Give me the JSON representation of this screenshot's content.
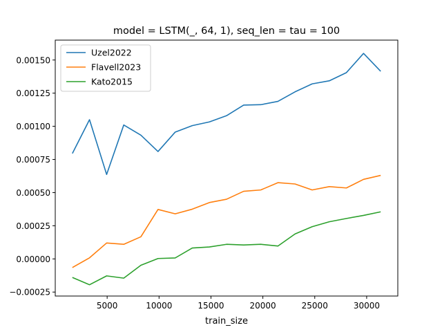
{
  "chart_data": {
    "type": "line",
    "title": "model = LSTM(_, 64, 1), seq_len = tau = 100",
    "xlabel": "train_size",
    "ylabel": "",
    "xlim": [
      0,
      33000
    ],
    "ylim": [
      -0.00028,
      0.00165
    ],
    "xticks": [
      5000,
      10000,
      15000,
      20000,
      25000,
      30000
    ],
    "xtick_labels": [
      "5000",
      "10000",
      "15000",
      "20000",
      "25000",
      "30000"
    ],
    "yticks": [
      -0.00025,
      0,
      0.00025,
      0.0005,
      0.00075,
      0.001,
      0.00125,
      0.0015
    ],
    "ytick_labels": [
      "−0.00025",
      "0.00000",
      "0.00025",
      "0.00050",
      "0.00075",
      "0.00100",
      "0.00125",
      "0.00150"
    ],
    "grid": false,
    "legend_position": "top-left",
    "x": [
      1650,
      3300,
      4950,
      6600,
      8250,
      9900,
      11550,
      13200,
      14850,
      16500,
      18150,
      19800,
      21450,
      23100,
      24750,
      26400,
      28050,
      29700,
      31350
    ],
    "series": [
      {
        "name": "Uzel2022",
        "color": "#1f77b4",
        "values": [
          0.000795,
          0.00105,
          0.000637,
          0.00101,
          0.000933,
          0.00081,
          0.000956,
          0.001005,
          0.001033,
          0.00108,
          0.00116,
          0.001163,
          0.001188,
          0.00126,
          0.00132,
          0.001343,
          0.001405,
          0.00155,
          0.001415
        ]
      },
      {
        "name": "Flavell2023",
        "color": "#ff7f0e",
        "values": [
          -6.5e-05,
          8e-06,
          0.00012,
          0.00011,
          0.000167,
          0.000373,
          0.00034,
          0.000375,
          0.000425,
          0.00045,
          0.00051,
          0.00052,
          0.000575,
          0.000565,
          0.00052,
          0.000545,
          0.000535,
          0.0006,
          0.00063
        ]
      },
      {
        "name": "Kato2015",
        "color": "#2ca02c",
        "values": [
          -0.00014,
          -0.000195,
          -0.000128,
          -0.000145,
          -4.8e-05,
          3e-06,
          7e-06,
          8.2e-05,
          9e-05,
          0.00011,
          0.000105,
          0.00011,
          9.7e-05,
          0.000188,
          0.000243,
          0.00028,
          0.000305,
          0.000328,
          0.000355
        ]
      }
    ]
  }
}
